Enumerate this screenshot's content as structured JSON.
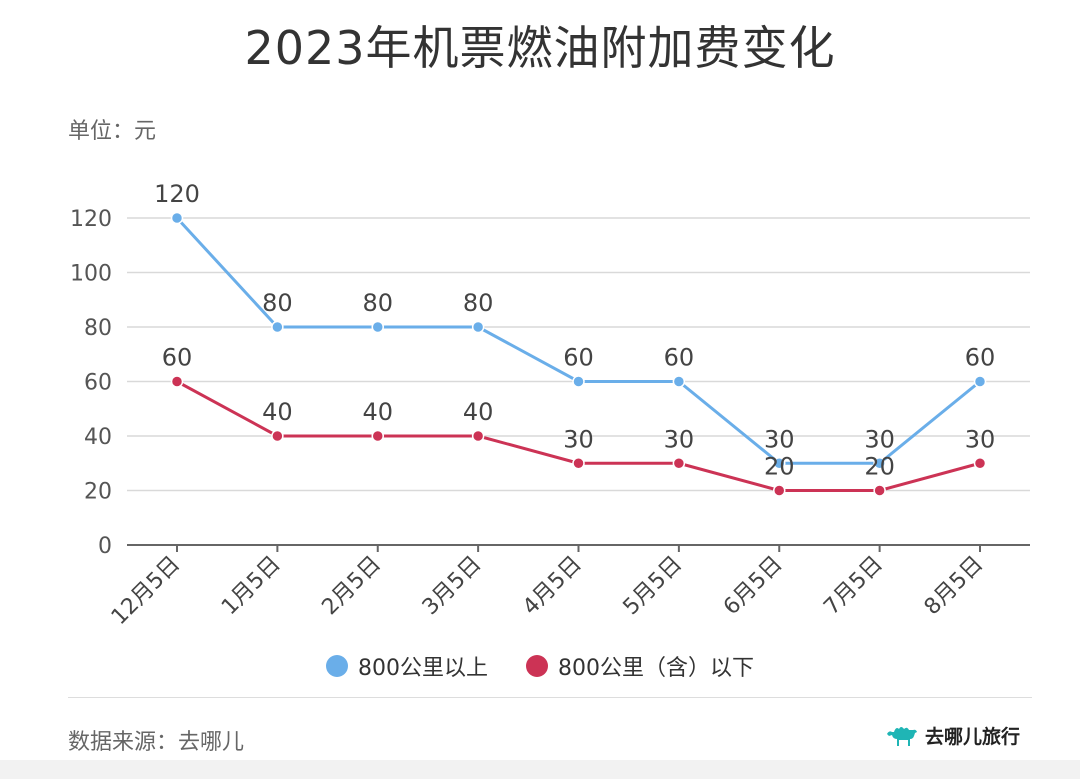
{
  "title": "2023年机票燃油附加费变化",
  "unit_label": "单位：元",
  "source_label": "数据来源：去哪儿",
  "brand": {
    "name": "去哪儿旅行",
    "logo_icon": "camel-icon",
    "logo_color": "#1fb5b5"
  },
  "chart_data": {
    "type": "line",
    "title": "2023年机票燃油附加费变化",
    "ylabel": "单位：元",
    "categories": [
      "12月5日",
      "1月5日",
      "2月5日",
      "3月5日",
      "4月5日",
      "5月5日",
      "6月5日",
      "7月5日",
      "8月5日"
    ],
    "ylim": [
      0,
      120
    ],
    "yticks": [
      0,
      20,
      40,
      60,
      80,
      100,
      120
    ],
    "grid": true,
    "legend": "bottom",
    "series": [
      {
        "name": "800公里以上",
        "color": "#6aaee9",
        "values": [
          120,
          80,
          80,
          80,
          60,
          60,
          30,
          30,
          60
        ]
      },
      {
        "name": "800公里（含）以下",
        "color": "#cc3355",
        "values": [
          60,
          40,
          40,
          40,
          30,
          30,
          20,
          20,
          30
        ]
      }
    ]
  }
}
